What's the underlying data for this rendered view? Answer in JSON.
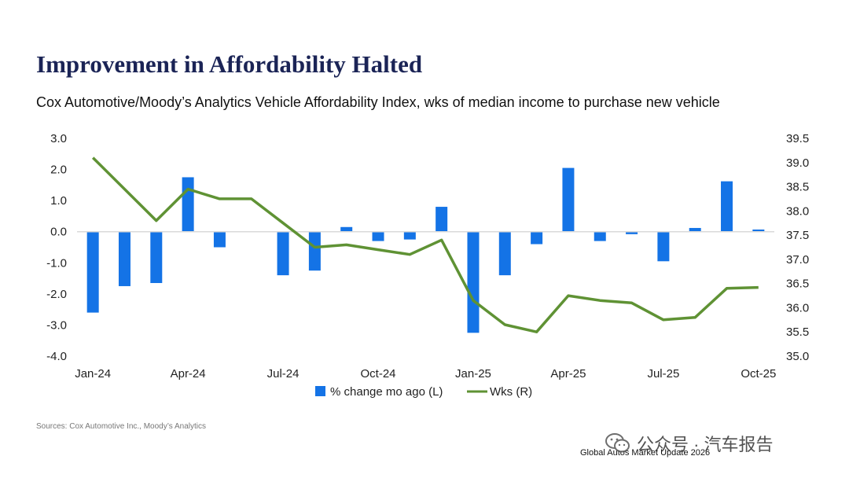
{
  "header": {
    "title": "Improvement in Affordability Halted",
    "subtitle": "Cox Automotive/Moody’s Analytics Vehicle Affordability Index, wks of median income to purchase new vehicle"
  },
  "chart_data": {
    "type": "bar",
    "categories": [
      "Jan-24",
      "Feb-24",
      "Mar-24",
      "Apr-24",
      "May-24",
      "Jun-24",
      "Jul-24",
      "Aug-24",
      "Sep-24",
      "Oct-24",
      "Nov-24",
      "Dec-24",
      "Jan-25",
      "Feb-25",
      "Mar-25",
      "Apr-25",
      "May-25",
      "Jun-25",
      "Jul-25",
      "Aug-25",
      "Sep-25",
      "Oct-25"
    ],
    "x_tick_labels": [
      "Jan-24",
      "Apr-24",
      "Jul-24",
      "Oct-24",
      "Jan-25",
      "Apr-25",
      "Jul-25",
      "Oct-25"
    ],
    "series": [
      {
        "name": "% change mo ago (L)",
        "type": "bar",
        "axis": "left",
        "color": "#1473e6",
        "values": [
          -2.6,
          -1.75,
          -1.65,
          1.75,
          -0.5,
          0.0,
          -1.4,
          -1.25,
          0.15,
          -0.3,
          -0.25,
          0.8,
          -3.25,
          -1.4,
          -0.4,
          2.05,
          -0.3,
          -0.08,
          -0.95,
          0.12,
          1.62,
          0.07
        ]
      },
      {
        "name": "Wks (R)",
        "type": "line",
        "axis": "right",
        "color": "#5f9234",
        "values": [
          39.1,
          null,
          37.8,
          38.45,
          38.25,
          38.25,
          37.75,
          37.25,
          37.3,
          37.2,
          37.1,
          37.4,
          36.15,
          35.65,
          35.5,
          36.25,
          36.15,
          36.1,
          35.75,
          35.8,
          36.4,
          36.42
        ]
      }
    ],
    "yleft": {
      "min": -4.0,
      "max": 3.0,
      "ticks": [
        "3.0",
        "2.0",
        "1.0",
        "0.0",
        "-1.0",
        "-2.0",
        "-3.0",
        "-4.0"
      ]
    },
    "yright": {
      "min": 35.0,
      "max": 39.5,
      "ticks": [
        "39.5",
        "39.0",
        "38.5",
        "38.0",
        "37.5",
        "37.0",
        "36.5",
        "36.0",
        "35.5",
        "35.0"
      ]
    },
    "legend": {
      "position": "bottom-center",
      "items": [
        "% change mo ago (L)",
        "Wks (R)"
      ]
    },
    "grid": false
  },
  "footer": {
    "source": "Sources: Cox Automotive Inc., Moody’s Analytics",
    "report": "Global Autos Market Update 2026"
  },
  "watermark": {
    "text": "公众号 · 汽车报告",
    "icon": "wechat-icon"
  }
}
